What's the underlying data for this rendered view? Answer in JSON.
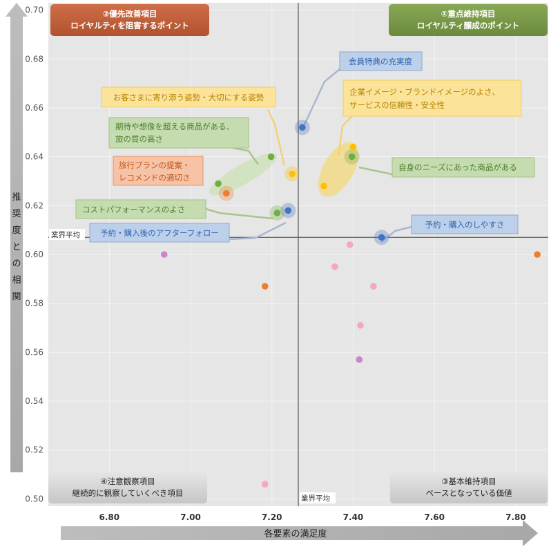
{
  "chart_data": {
    "type": "scatter",
    "title": "",
    "xlabel": "各要素の満足度",
    "ylabel_chars": [
      "推",
      "奨",
      "度",
      "と",
      "の",
      "相",
      "関"
    ],
    "xlim": [
      6.65,
      7.88
    ],
    "ylim": [
      0.497,
      0.703
    ],
    "x_ticks": [
      "6.80",
      "7.00",
      "7.20",
      "7.40",
      "7.60",
      "7.80"
    ],
    "x_tick_values": [
      6.8,
      7.0,
      7.2,
      7.4,
      7.6,
      7.8
    ],
    "y_ticks": [
      "0.70",
      "0.68",
      "0.66",
      "0.64",
      "0.62",
      "0.60",
      "0.58",
      "0.56",
      "0.54",
      "0.52",
      "0.50"
    ],
    "y_tick_values": [
      0.7,
      0.68,
      0.66,
      0.64,
      0.62,
      0.6,
      0.58,
      0.56,
      0.54,
      0.52,
      0.5
    ],
    "grid": true,
    "industry_average": {
      "x": 7.265,
      "y": 0.607,
      "x_label": "業界平均",
      "y_label": "業界平均"
    },
    "colors": {
      "blue": "#4472c4",
      "orange": "#ed7d31",
      "green": "#70ad47",
      "gold": "#ffc000",
      "pink": "#f4a6c6",
      "purple": "#c986c9",
      "red_quad": "#c0603a",
      "green_quad": "#7a9a48",
      "gray_quad": "#d4d4d4"
    },
    "quadrants": [
      {
        "name": "q1",
        "line1": "①重点維持項目",
        "line2": "ロイヤルティ醸成のポイント",
        "color": "#7a9a48",
        "text_color": "#ffffff"
      },
      {
        "name": "q2",
        "line1": "②優先改善項目",
        "line2": "ロイヤルティを阻害するポイント",
        "color": "#c0603a",
        "text_color": "#ffffff"
      },
      {
        "name": "q3",
        "line1": "③基本維持項目",
        "line2": "ベースとなっている価値",
        "color": "#d4d4d4",
        "text_color": "#222222"
      },
      {
        "name": "q4",
        "line1": "④注意観察項目",
        "line2": "継続的に観察していくべき項目",
        "color": "#d4d4d4",
        "text_color": "#222222"
      }
    ],
    "points": [
      {
        "x": 7.275,
        "y": 0.652,
        "color": "#4472c4",
        "halo": true
      },
      {
        "x": 7.47,
        "y": 0.607,
        "color": "#4472c4",
        "halo": true
      },
      {
        "x": 7.24,
        "y": 0.618,
        "color": "#4472c4",
        "halo": true
      },
      {
        "x": 7.397,
        "y": 0.64,
        "color": "#70ad47",
        "halo": true
      },
      {
        "x": 7.213,
        "y": 0.617,
        "color": "#70ad47",
        "halo": true
      },
      {
        "x": 7.198,
        "y": 0.64,
        "color": "#70ad47",
        "halo": false
      },
      {
        "x": 7.068,
        "y": 0.629,
        "color": "#70ad47",
        "halo": false
      },
      {
        "x": 7.088,
        "y": 0.625,
        "color": "#ed7d31",
        "halo": true
      },
      {
        "x": 7.4,
        "y": 0.644,
        "color": "#ffc000",
        "halo": false
      },
      {
        "x": 7.328,
        "y": 0.628,
        "color": "#ffc000",
        "halo": false
      },
      {
        "x": 7.25,
        "y": 0.633,
        "color": "#ffc000",
        "halo": true
      },
      {
        "x": 6.935,
        "y": 0.6,
        "color": "#c986c9",
        "halo": false
      },
      {
        "x": 7.415,
        "y": 0.557,
        "color": "#c986c9",
        "halo": false
      },
      {
        "x": 7.183,
        "y": 0.587,
        "color": "#ed7d31",
        "halo": false
      },
      {
        "x": 7.853,
        "y": 0.6,
        "color": "#ed7d31",
        "halo": false
      },
      {
        "x": 7.392,
        "y": 0.604,
        "color": "#f4a6c6",
        "halo": false
      },
      {
        "x": 7.355,
        "y": 0.595,
        "color": "#f4a6c6",
        "halo": false
      },
      {
        "x": 7.45,
        "y": 0.587,
        "color": "#f4a6c6",
        "halo": false
      },
      {
        "x": 7.418,
        "y": 0.571,
        "color": "#f4a6c6",
        "halo": false
      },
      {
        "x": 7.183,
        "y": 0.506,
        "color": "#f4a6c6",
        "halo": false
      }
    ],
    "annotations": [
      {
        "name": "member-benefits",
        "lines": [
          "会員特典の充実度"
        ],
        "style": "blue"
      },
      {
        "name": "hospitality-attitude",
        "lines": [
          "お客さまに寄り添う姿勢・大切にする姿勢"
        ],
        "style": "gold"
      },
      {
        "name": "corporate-image",
        "lines": [
          "企業イメージ・ブランドイメージのよさ、",
          "サービスの信頼性・安全性"
        ],
        "style": "gold"
      },
      {
        "name": "exceeding-expectations",
        "lines": [
          "期待や想像を超える商品がある、",
          "旅の質の高さ"
        ],
        "style": "green"
      },
      {
        "name": "plan-suggestion",
        "lines": [
          "旅行プランの提案・",
          "レコメンドの適切さ"
        ],
        "style": "orange"
      },
      {
        "name": "matching-needs",
        "lines": [
          "自身のニーズにあった商品がある"
        ],
        "style": "green"
      },
      {
        "name": "cost-performance",
        "lines": [
          "コストパフォーマンスのよさ"
        ],
        "style": "green"
      },
      {
        "name": "booking-ease",
        "lines": [
          "予約・購入のしやすさ"
        ],
        "style": "blue"
      },
      {
        "name": "after-followup",
        "lines": [
          "予約・購入後のアフターフォロー"
        ],
        "style": "blue"
      }
    ]
  }
}
